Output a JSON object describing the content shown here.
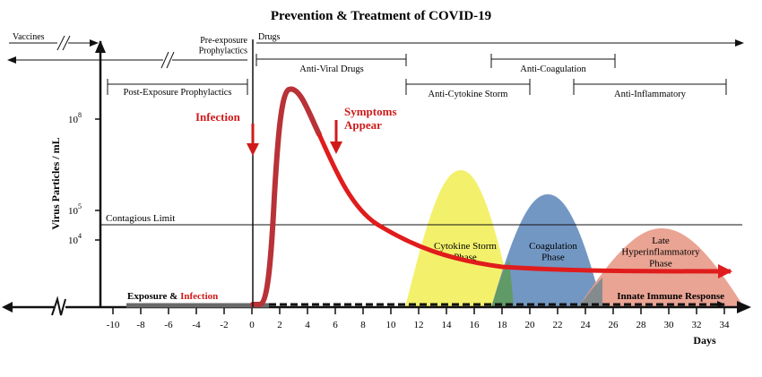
{
  "title": "Prevention & Treatment of COVID-19",
  "colors": {
    "virus_curve": "#b83238",
    "virus_curve_late": "#e01c1c",
    "cytokine_phase": "#f2f05c",
    "coagulation_phase": "#5a85b8",
    "hyperinflammatory_phase": "#e89a88",
    "overlap_green": "#5f9a62",
    "infection_label": "#d01a1a",
    "axis": "#111111"
  },
  "prevention": {
    "vaccines_label": "Vaccines",
    "pre_exposure_label": "Pre-exposure\nProphylactics",
    "drugs_label": "Drugs",
    "post_exposure_label": "Post-Exposure Prophylactics",
    "anti_viral_label": "Anti-Viral Drugs",
    "anti_coagulation_label": "Anti-Coagulation",
    "anti_cytokine_label": "Anti-Cytokine Storm",
    "anti_inflammatory_label": "Anti-Inflammatory"
  },
  "annotations": {
    "infection_arrow_label": "Infection",
    "symptoms_arrow_label": "Symptoms\nAppear",
    "contagious_limit_label": "Contagious Limit",
    "exposure_label": "Exposure & ",
    "exposure_infection_word": "Infection",
    "innate_immune_label": "Innate Immune Response"
  },
  "phases": {
    "cytokine_label": "Cytokine Storm\nPhase",
    "coagulation_label": "Coagulation\nPhase",
    "hyperinflammatory_label": "Late\nHyperinflammatory\nPhase"
  },
  "chart_data": {
    "type": "line",
    "title": "Prevention & Treatment of COVID-19",
    "ylabel": "Virus Particles / mL",
    "xlabel": "Days",
    "y_scale": "log",
    "y_ticks": [
      "10^8",
      "10^5",
      "10^4"
    ],
    "x_ticks": [
      -10,
      -8,
      -6,
      -4,
      -2,
      0,
      2,
      4,
      6,
      8,
      10,
      12,
      14,
      16,
      18,
      20,
      22,
      24,
      26,
      28,
      30,
      32,
      34
    ],
    "xlim": [
      -10,
      34
    ],
    "series": [
      {
        "name": "Virus Particles / mL",
        "x": [
          -9,
          -1,
          0,
          0.5,
          1,
          1.5,
          2,
          2.5,
          3,
          3.5,
          4,
          5,
          6,
          7,
          8,
          10,
          12,
          14,
          16,
          20,
          25,
          30,
          35
        ],
        "y": [
          "low",
          "low",
          "low",
          "low",
          "rising",
          "rising",
          "peak",
          "peak",
          "peak",
          "peak",
          "falling",
          "falling",
          "falling",
          "falling",
          "falling",
          "falling",
          "low",
          "low",
          "low",
          "low",
          "low",
          "low",
          "low"
        ]
      }
    ]
  }
}
